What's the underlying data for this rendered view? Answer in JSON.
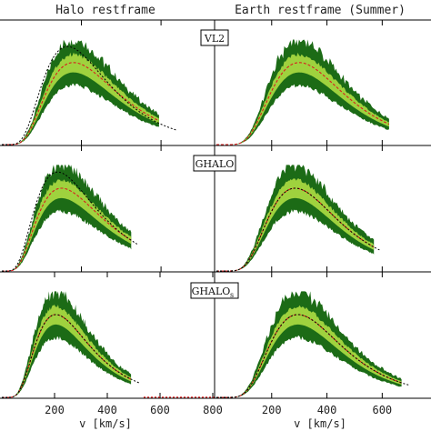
{
  "figure": {
    "col_titles": [
      "Halo restframe",
      "Earth restframe (Summer)"
    ],
    "xlabel": "v [km/s]",
    "colors": {
      "outer_band": "#1c6b16",
      "inner_band": "#9fd23e",
      "median": "#d81e1e",
      "fit": "#000000"
    }
  },
  "chart_data": [
    {
      "type": "area",
      "panel": "VL2, Halo restframe",
      "label": "VL2",
      "label_sub": "",
      "xticks": [
        200,
        400
      ],
      "xlim": [
        0,
        530
      ],
      "peak": 180,
      "width": 0.5,
      "hi_end": 395,
      "fit_peak": 165,
      "fit_width": 0.5,
      "fit_end": 440,
      "fit_shown": "peak-and-tail"
    },
    {
      "type": "area",
      "panel": "VL2, Earth restframe (Summer)",
      "xticks": [
        200,
        400,
        600
      ],
      "xlim": [
        0,
        770
      ],
      "peak": 300,
      "width": 0.44,
      "hi_end": 625,
      "fit_peak": 300,
      "fit_width": 0.44,
      "fit_end": 650,
      "fit_shown": "none"
    },
    {
      "type": "area",
      "panel": "GHALO, Halo restframe",
      "label": "GHALO",
      "label_sub": "",
      "xticks": [
        200,
        400
      ],
      "xlim": [
        0,
        530
      ],
      "peak": 150,
      "width": 0.55,
      "hi_end": 325,
      "fit_peak": 140,
      "fit_width": 0.55,
      "fit_end": 340,
      "fit_shown": "peak-and-tail"
    },
    {
      "type": "area",
      "panel": "GHALO, Earth restframe (Summer)",
      "xticks": [
        200,
        400,
        600
      ],
      "xlim": [
        0,
        770
      ],
      "peak": 285,
      "width": 0.44,
      "hi_end": 570,
      "fit_peak": 285,
      "fit_width": 0.44,
      "fit_end": 590,
      "fit_shown": "full"
    },
    {
      "type": "area",
      "panel": "GHALOs, Halo restframe",
      "label": "GHALO",
      "label_sub": "s",
      "xticks": [
        200,
        400,
        600,
        800
      ],
      "xlim": [
        0,
        800
      ],
      "peak": 205,
      "width": 0.5,
      "hi_end": 490,
      "fit_peak": 205,
      "fit_width": 0.5,
      "fit_end": 520,
      "fit_shown": "full"
    },
    {
      "type": "area",
      "panel": "GHALOs, Earth restframe (Summer)",
      "xticks": [
        200,
        400,
        600
      ],
      "xlim": [
        0,
        770
      ],
      "peak": 295,
      "width": 0.44,
      "hi_end": 670,
      "fit_peak": 295,
      "fit_width": 0.44,
      "fit_end": 700,
      "fit_shown": "full"
    }
  ]
}
